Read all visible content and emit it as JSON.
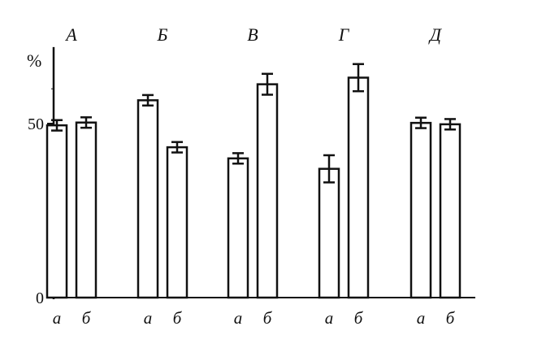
{
  "chart_data": {
    "type": "bar",
    "y_axis_label": "%",
    "y_ticks": [
      {
        "value": 0,
        "label": "0"
      },
      {
        "value": 50,
        "label": "50"
      }
    ],
    "ylim": [
      0,
      72
    ],
    "grid": false,
    "groups": [
      {
        "name": "А",
        "bars": [
          {
            "label": "а",
            "value": 49.5,
            "error": 1.5
          },
          {
            "label": "б",
            "value": 50.3,
            "error": 1.5
          }
        ]
      },
      {
        "name": "Б",
        "bars": [
          {
            "label": "а",
            "value": 56.7,
            "error": 1.5
          },
          {
            "label": "б",
            "value": 43.2,
            "error": 1.5
          }
        ]
      },
      {
        "name": "В",
        "bars": [
          {
            "label": "а",
            "value": 40.0,
            "error": 1.5
          },
          {
            "label": "б",
            "value": 61.3,
            "error": 3.0
          }
        ]
      },
      {
        "name": "Г",
        "bars": [
          {
            "label": "а",
            "value": 37.0,
            "error": 3.9
          },
          {
            "label": "б",
            "value": 63.2,
            "error": 3.9
          }
        ]
      },
      {
        "name": "Д",
        "bars": [
          {
            "label": "а",
            "value": 50.2,
            "error": 1.5
          },
          {
            "label": "б",
            "value": 49.8,
            "error": 1.5
          }
        ]
      }
    ]
  }
}
